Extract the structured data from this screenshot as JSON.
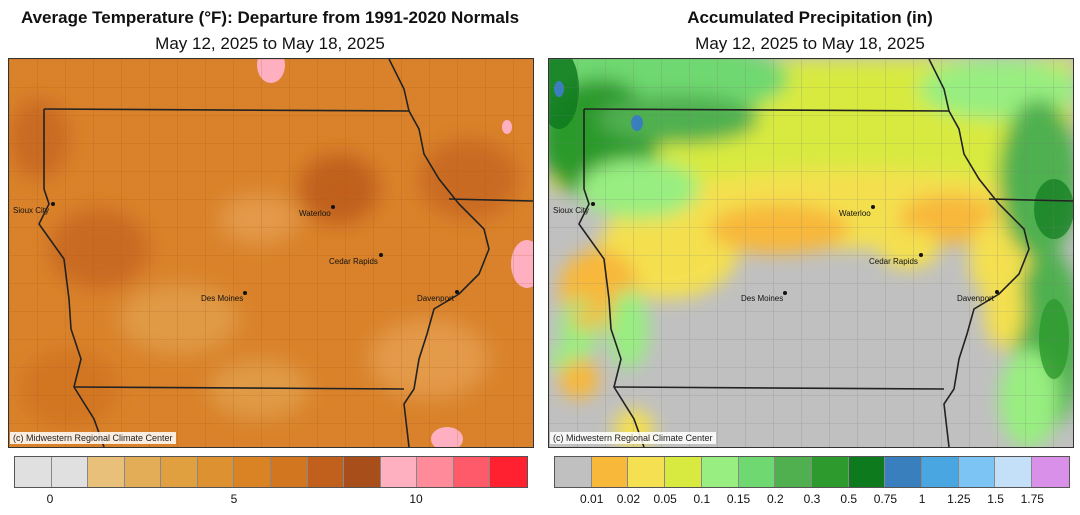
{
  "left_panel": {
    "title": "Average Temperature (°F): Departure from 1991-2020 Normals",
    "subtitle": "May 12, 2025 to May 18, 2025",
    "credit": "(c) Midwestern Regional Climate Center",
    "cities": [
      "Sioux City",
      "Waterloo",
      "Cedar Rapids",
      "Des Moines",
      "Davenport"
    ],
    "legend": {
      "colors": [
        "#e0e0e0",
        "#e0e0e0",
        "#e8c07a",
        "#e3ad58",
        "#e0a040",
        "#dd9130",
        "#d98324",
        "#d27620",
        "#c0601c",
        "#a84e1a",
        "#ffb0c0",
        "#ff8a9a",
        "#ff5a6a",
        "#ff2030"
      ],
      "tick_labels": [
        "0",
        "5",
        "10"
      ],
      "tick_values": [
        0,
        5,
        10
      ]
    },
    "fill_base": "#d9822b"
  },
  "right_panel": {
    "title": "Accumulated Precipitation (in)",
    "subtitle": "May 12, 2025 to May 18, 2025",
    "credit": "(c) Midwestern Regional Climate Center",
    "cities": [
      "Sioux City",
      "Waterloo",
      "Cedar Rapids",
      "Des Moines",
      "Davenport"
    ],
    "legend": {
      "colors": [
        "#c0c0c0",
        "#f8b83a",
        "#f4e050",
        "#d8ea40",
        "#98ee80",
        "#70d870",
        "#50b050",
        "#2c9a2c",
        "#0e7a1e",
        "#3a7fbd",
        "#4aa6e0",
        "#7cc4f4",
        "#c4e0f8",
        "#d890e8"
      ],
      "tick_labels": [
        "0.01",
        "0.02",
        "0.05",
        "0.1",
        "0.15",
        "0.2",
        "0.3",
        "0.5",
        "0.75",
        "1",
        "1.25",
        "1.5",
        "1.75"
      ]
    },
    "fill_base": "#c0c0c0"
  }
}
